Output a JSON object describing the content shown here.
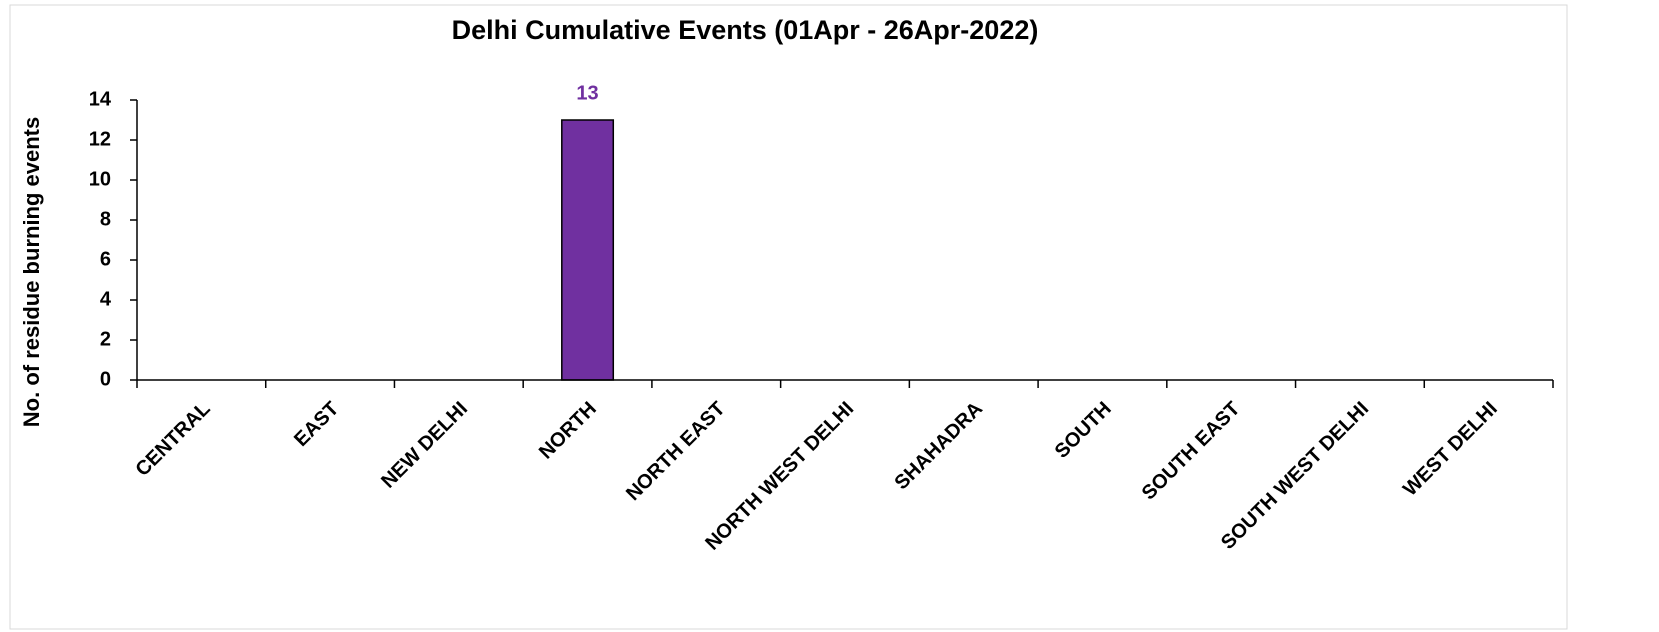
{
  "chart_data": {
    "type": "bar",
    "title": "Delhi Cumulative Events (01Apr - 26Apr-2022)",
    "y_label": "No. of residue burning events",
    "categories": [
      "CENTRAL",
      "EAST",
      "NEW DELHI",
      "NORTH",
      "NORTH EAST",
      "NORTH WEST DELHI",
      "SHAHADRA",
      "SOUTH",
      "SOUTH EAST",
      "SOUTH WEST DELHI",
      "WEST DELHI"
    ],
    "values": [
      0,
      0,
      0,
      13,
      0,
      0,
      0,
      0,
      0,
      0,
      0
    ],
    "color": "#7030a0",
    "label_color": "#7030a0",
    "ylim": [
      0,
      14
    ],
    "yticks": [
      0,
      2,
      4,
      6,
      8,
      10,
      12,
      14
    ],
    "grid": false
  }
}
